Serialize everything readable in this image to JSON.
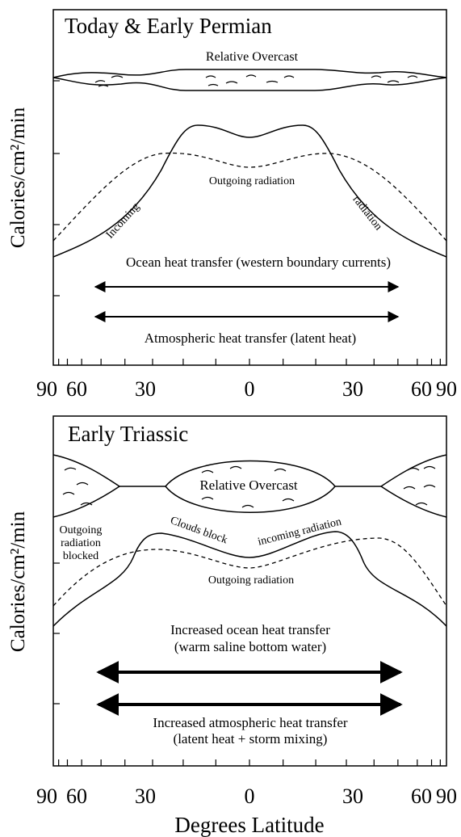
{
  "panels": [
    {
      "title": "Today & Early Permian",
      "overcast_label": "Relative Overcast",
      "y_axis_label": "Calories/cm²/min",
      "outgoing_label": "Outgoing radiation",
      "incoming_label_left": "Incoming",
      "incoming_label_right": "radiation",
      "ocean_label": "Ocean heat transfer (western boundary currents)",
      "atmos_label": "Atmospheric heat transfer (latent heat)",
      "x_tick_labels": [
        "90",
        "60",
        "30",
        "0",
        "30",
        "60",
        "90"
      ]
    },
    {
      "title": "Early Triassic",
      "overcast_label": "Relative Overcast",
      "y_axis_label": "Calories/cm²/min",
      "blocked_label": [
        "Outgoing",
        "radiation",
        "blocked"
      ],
      "clouds_block_label": "Clouds block",
      "incoming_label": "incoming radiation",
      "outgoing_label": "Outgoing radiation",
      "ocean_label": [
        "Increased ocean heat transfer",
        "(warm saline bottom water)"
      ],
      "atmos_label": [
        "Increased atmospheric heat transfer",
        "(latent heat + storm mixing)"
      ],
      "x_tick_labels": [
        "90",
        "60",
        "30",
        "0",
        "30",
        "60",
        "90"
      ]
    }
  ],
  "x_axis_label": "Degrees Latitude"
}
